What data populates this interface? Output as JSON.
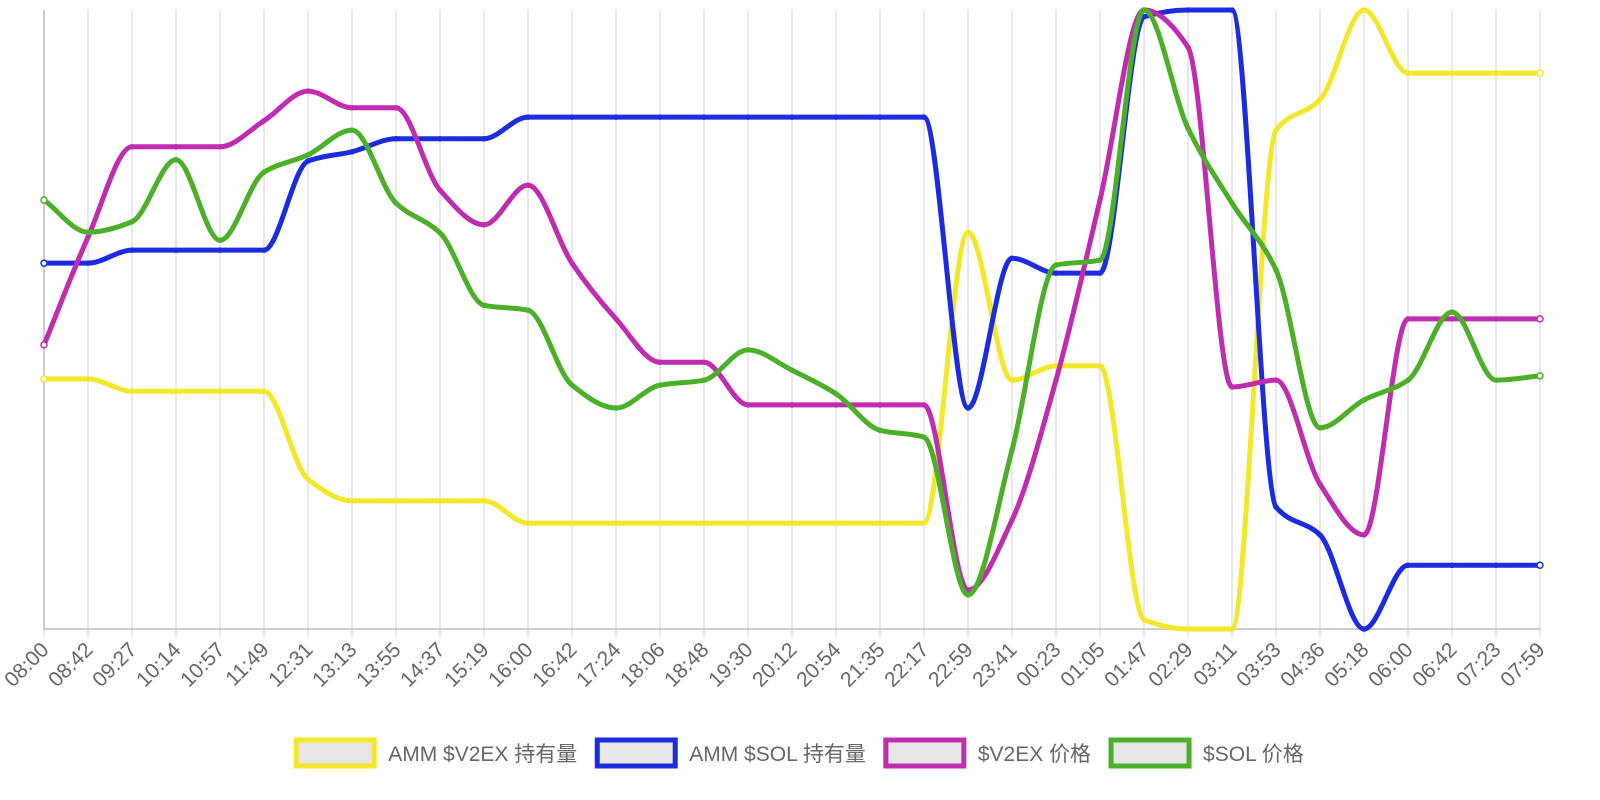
{
  "chart_data": {
    "type": "line",
    "categories": [
      "08:00",
      "08:42",
      "09:27",
      "10:14",
      "10:57",
      "11:49",
      "12:31",
      "13:13",
      "13:55",
      "14:37",
      "15:19",
      "16:00",
      "16:42",
      "17:24",
      "18:06",
      "18:48",
      "19:30",
      "20:12",
      "20:54",
      "21:35",
      "22:17",
      "22:59",
      "23:41",
      "00:23",
      "01:05",
      "01:47",
      "02:29",
      "03:11",
      "03:53",
      "04:36",
      "05:18",
      "06:00",
      "06:42",
      "07:23",
      "07:59"
    ],
    "ylim": [
      0,
      100
    ],
    "grid": true,
    "legend": "bottom",
    "series": [
      {
        "name": "AMM $V2EX 持有量",
        "color": "#f2e82a",
        "values": [
          40.4,
          40.4,
          38.4,
          38.4,
          38.4,
          38.4,
          24.2,
          20.7,
          20.7,
          20.7,
          20.7,
          17.1,
          17.1,
          17.1,
          17.1,
          17.1,
          17.1,
          17.1,
          17.1,
          17.1,
          17.1,
          64.1,
          40.2,
          42.5,
          42.5,
          1.5,
          0,
          0,
          80.6,
          85.5,
          100,
          89.8,
          89.8,
          89.8,
          89.8
        ]
      },
      {
        "name": "AMM $SOL 持有量",
        "color": "#1c2be0",
        "values": [
          59.1,
          59.1,
          61.2,
          61.2,
          61.2,
          61.2,
          75.6,
          77.1,
          79.2,
          79.2,
          79.2,
          82.7,
          82.7,
          82.7,
          82.7,
          82.7,
          82.7,
          82.7,
          82.7,
          82.7,
          82.7,
          35.7,
          59.9,
          57.5,
          57.5,
          98.9,
          100,
          100,
          19.7,
          15.2,
          0,
          10.3,
          10.3,
          10.3,
          10.3
        ]
      },
      {
        "name": "$V2EX 价格",
        "color": "#c02cb0",
        "values": [
          45.9,
          63.3,
          77.9,
          77.9,
          77.9,
          82.1,
          86.9,
          84.2,
          84.2,
          70.9,
          65.3,
          71.7,
          59.1,
          50.1,
          43.1,
          43.1,
          36.2,
          36.2,
          36.2,
          36.2,
          36.2,
          6.3,
          17.6,
          40.2,
          69.3,
          100,
          94,
          39.1,
          40.2,
          23.4,
          15.2,
          50.1,
          50.1,
          50.1,
          50.1
        ]
      },
      {
        "name": "$SOL 价格",
        "color": "#4caf28",
        "values": [
          69.3,
          64.1,
          65.8,
          75.8,
          62.8,
          73.8,
          76.6,
          80.6,
          68.8,
          64,
          52.3,
          51.5,
          39.4,
          35.7,
          39.4,
          40.2,
          45.1,
          41.8,
          38,
          32.1,
          31,
          5.5,
          28.9,
          58.8,
          59.6,
          100,
          80.9,
          68.8,
          58,
          32.5,
          37,
          40.2,
          51.2,
          40.2,
          40.9
        ]
      }
    ]
  }
}
